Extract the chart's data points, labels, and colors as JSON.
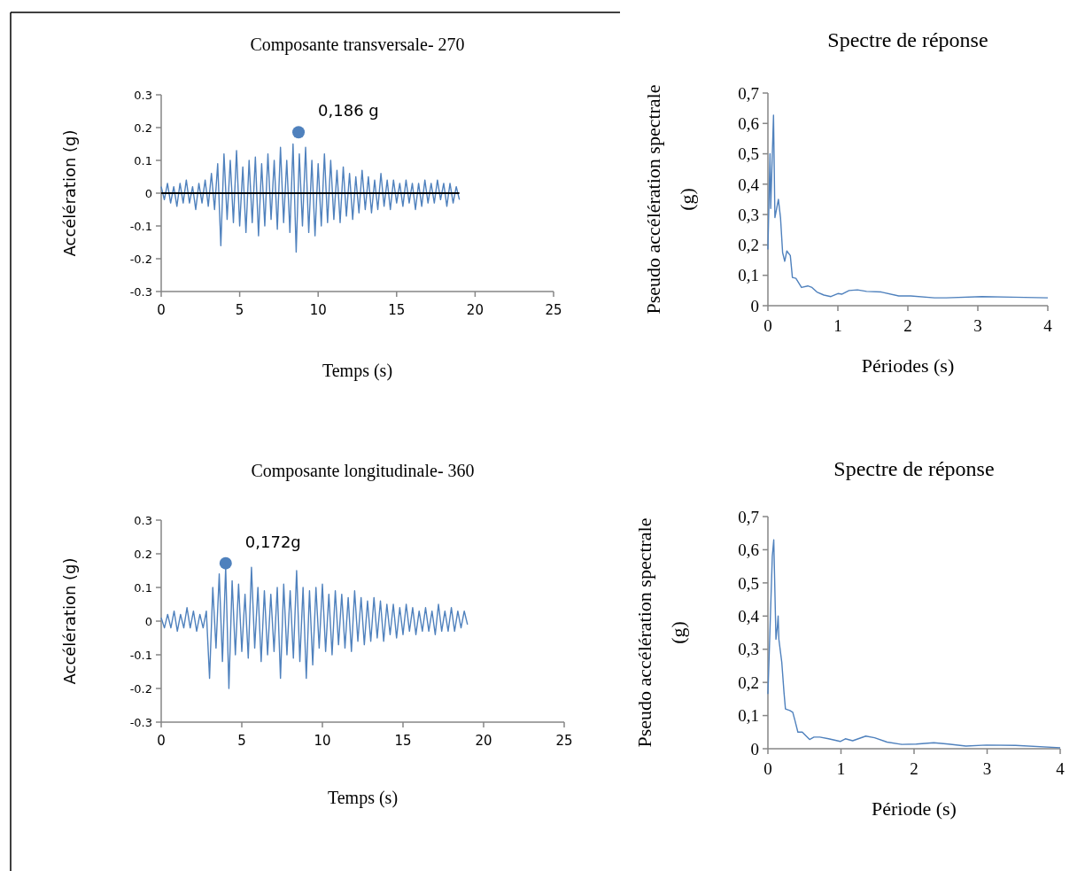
{
  "chart_data": [
    {
      "type": "line",
      "title": "Composante transversale- 270",
      "xlabel": "Temps (s)",
      "ylabel": "Accélération (g)",
      "xlim": [
        0,
        25
      ],
      "xticks": [
        0,
        5,
        10,
        15,
        20,
        25
      ],
      "ylim": [
        -0.3,
        0.3
      ],
      "yticks": [
        -0.3,
        -0.2,
        -0.1,
        0,
        0.1,
        0.2,
        0.3
      ],
      "ref_lines": [
        {
          "axis": "y",
          "value": 0,
          "color": "#000000"
        }
      ],
      "annotations": [
        {
          "text": "0,186 g",
          "x": 8.75,
          "y": 0.186
        }
      ],
      "series": [
        {
          "type": "line",
          "color": "#4f81bd",
          "x": [
            0,
            0.2,
            0.4,
            0.6,
            0.8,
            1,
            1.2,
            1.4,
            1.6,
            1.8,
            2,
            2.2,
            2.4,
            2.6,
            2.8,
            3,
            3.2,
            3.4,
            3.6,
            3.8,
            4,
            4.2,
            4.4,
            4.6,
            4.8,
            5,
            5.2,
            5.4,
            5.6,
            5.8,
            6,
            6.2,
            6.4,
            6.6,
            6.8,
            7,
            7.2,
            7.4,
            7.6,
            7.8,
            8,
            8.2,
            8.4,
            8.6,
            8.8,
            9,
            9.2,
            9.4,
            9.6,
            9.8,
            10,
            10.2,
            10.4,
            10.6,
            10.8,
            11,
            11.2,
            11.4,
            11.6,
            11.8,
            12,
            12.2,
            12.4,
            12.6,
            12.8,
            13,
            13.2,
            13.4,
            13.6,
            13.8,
            14,
            14.2,
            14.4,
            14.6,
            14.8,
            15,
            15.2,
            15.4,
            15.6,
            15.8,
            16,
            16.2,
            16.4,
            16.6,
            16.8,
            17,
            17.2,
            17.4,
            17.6,
            17.8,
            18,
            18.2,
            18.4,
            18.6,
            18.8,
            19
          ],
          "values": [
            0.02,
            -0.02,
            0.03,
            -0.03,
            0.02,
            -0.04,
            0.03,
            -0.03,
            0.04,
            -0.03,
            0.02,
            -0.05,
            0.03,
            -0.03,
            0.04,
            -0.04,
            0.06,
            -0.05,
            0.09,
            -0.16,
            0.12,
            -0.08,
            0.1,
            -0.09,
            0.13,
            -0.1,
            0.08,
            -0.12,
            0.1,
            -0.09,
            0.11,
            -0.13,
            0.09,
            -0.1,
            0.12,
            -0.08,
            0.1,
            -0.11,
            0.14,
            -0.09,
            0.1,
            -0.12,
            0.15,
            -0.18,
            0.12,
            -0.1,
            0.14,
            -0.12,
            0.1,
            -0.13,
            0.09,
            -0.1,
            0.12,
            -0.09,
            0.1,
            -0.08,
            0.07,
            -0.09,
            0.08,
            -0.07,
            0.06,
            -0.08,
            0.05,
            -0.06,
            0.07,
            -0.05,
            0.05,
            -0.06,
            0.04,
            -0.05,
            0.06,
            -0.04,
            0.04,
            -0.05,
            0.04,
            -0.03,
            0.03,
            -0.04,
            0.04,
            -0.03,
            0.03,
            -0.05,
            0.03,
            -0.04,
            0.04,
            -0.03,
            0.03,
            -0.03,
            0.04,
            -0.02,
            0.03,
            -0.04,
            0.03,
            -0.03,
            0.02,
            -0.02
          ]
        },
        {
          "type": "scatter",
          "color": "#4f81bd",
          "marker": "circle",
          "x": [
            8.75
          ],
          "values": [
            0.186
          ]
        }
      ]
    },
    {
      "type": "line",
      "title": "Spectre de réponse",
      "xlabel": "Périodes (s)",
      "ylabel": "Pseudo accélération spectrale (g)",
      "xlim": [
        0,
        4
      ],
      "xticks": [
        0,
        1,
        2,
        3,
        4
      ],
      "ylim": [
        0,
        0.7
      ],
      "yticks": [
        0,
        {
          "value": 0.1,
          "label": "0,1"
        },
        {
          "value": 0.2,
          "label": "0,2"
        },
        {
          "value": 0.3,
          "label": "0,3"
        },
        {
          "value": 0.4,
          "label": "0,4"
        },
        {
          "value": 0.5,
          "label": "0,5"
        },
        {
          "value": 0.6,
          "label": "0,6"
        },
        {
          "value": 0.7,
          "label": "0,7"
        }
      ],
      "series": [
        {
          "type": "line",
          "color": "#4f81bd",
          "x": [
            0,
            0.03,
            0.04,
            0.08,
            0.1,
            0.15,
            0.18,
            0.21,
            0.24,
            0.27,
            0.32,
            0.35,
            0.4,
            0.48,
            0.57,
            0.63,
            0.7,
            0.8,
            0.9,
            1,
            1.06,
            1.16,
            1.28,
            1.41,
            1.62,
            1.87,
            2.04,
            2.38,
            2.55,
            3.06,
            3.5,
            4
          ],
          "values": [
            0.185,
            0.5,
            0.32,
            0.627,
            0.29,
            0.35,
            0.29,
            0.175,
            0.146,
            0.18,
            0.165,
            0.093,
            0.09,
            0.06,
            0.065,
            0.06,
            0.045,
            0.035,
            0.03,
            0.04,
            0.038,
            0.05,
            0.052,
            0.047,
            0.045,
            0.032,
            0.032,
            0.026,
            0.026,
            0.03,
            0.028,
            0.026
          ]
        }
      ]
    },
    {
      "type": "line",
      "title": "Composante longitudinale- 360",
      "xlabel": "Temps (s)",
      "ylabel": "Accélération (g)",
      "xlim": [
        0,
        25
      ],
      "xticks": [
        0,
        5,
        10,
        15,
        20,
        25
      ],
      "ylim": [
        -0.3,
        0.3
      ],
      "yticks": [
        -0.3,
        -0.2,
        -0.1,
        0,
        0.1,
        0.2,
        0.3
      ],
      "annotations": [
        {
          "text": "0,172g",
          "x": 4,
          "y": 0.172
        }
      ],
      "series": [
        {
          "type": "line",
          "color": "#4f81bd",
          "x": [
            0,
            0.2,
            0.4,
            0.6,
            0.8,
            1,
            1.2,
            1.4,
            1.6,
            1.8,
            2,
            2.2,
            2.4,
            2.6,
            2.8,
            3,
            3.2,
            3.4,
            3.6,
            3.8,
            4,
            4.2,
            4.4,
            4.6,
            4.8,
            5,
            5.2,
            5.4,
            5.6,
            5.8,
            6,
            6.2,
            6.4,
            6.6,
            6.8,
            7,
            7.2,
            7.4,
            7.6,
            7.8,
            8,
            8.2,
            8.4,
            8.6,
            8.8,
            9,
            9.2,
            9.4,
            9.6,
            9.8,
            10,
            10.2,
            10.4,
            10.6,
            10.8,
            11,
            11.2,
            11.4,
            11.6,
            11.8,
            12,
            12.2,
            12.4,
            12.6,
            12.8,
            13,
            13.2,
            13.4,
            13.6,
            13.8,
            14,
            14.2,
            14.4,
            14.6,
            14.8,
            15,
            15.2,
            15.4,
            15.6,
            15.8,
            16,
            16.2,
            16.4,
            16.6,
            16.8,
            17,
            17.2,
            17.4,
            17.6,
            17.8,
            18,
            18.2,
            18.4,
            18.6,
            18.8,
            19
          ],
          "values": [
            0.01,
            -0.02,
            0.02,
            -0.02,
            0.03,
            -0.03,
            0.02,
            -0.02,
            0.04,
            -0.02,
            0.03,
            -0.03,
            0.02,
            -0.02,
            0.03,
            -0.17,
            0.1,
            -0.08,
            0.14,
            -0.12,
            0.16,
            -0.2,
            0.12,
            -0.1,
            0.11,
            -0.09,
            0.08,
            -0.11,
            0.16,
            -0.08,
            0.1,
            -0.12,
            0.09,
            -0.1,
            0.08,
            -0.09,
            0.1,
            -0.17,
            0.11,
            -0.1,
            0.09,
            -0.11,
            0.15,
            -0.12,
            0.1,
            -0.17,
            0.09,
            -0.13,
            0.1,
            -0.08,
            0.11,
            -0.09,
            0.08,
            -0.1,
            0.09,
            -0.07,
            0.08,
            -0.08,
            0.07,
            -0.09,
            0.09,
            -0.06,
            0.07,
            -0.07,
            0.06,
            -0.06,
            0.07,
            -0.05,
            0.06,
            -0.06,
            0.05,
            -0.04,
            0.05,
            -0.05,
            0.04,
            -0.04,
            0.05,
            -0.03,
            0.04,
            -0.04,
            0.03,
            -0.03,
            0.04,
            -0.03,
            0.03,
            -0.04,
            0.05,
            -0.03,
            0.03,
            -0.03,
            0.04,
            -0.03,
            0.03,
            -0.02,
            0.03,
            -0.01
          ]
        },
        {
          "type": "scatter",
          "color": "#4f81bd",
          "marker": "circle",
          "x": [
            4
          ],
          "values": [
            0.172
          ]
        }
      ]
    },
    {
      "type": "line",
      "title": "Spectre de réponse",
      "xlabel": "Période (s)",
      "ylabel": "Pseudo accélération spectrale (g)",
      "xlim": [
        0,
        4
      ],
      "xticks": [
        0,
        1,
        2,
        3,
        4
      ],
      "ylim": [
        0,
        0.7
      ],
      "yticks": [
        0,
        {
          "value": 0.1,
          "label": "0,1"
        },
        {
          "value": 0.2,
          "label": "0,2"
        },
        {
          "value": 0.3,
          "label": "0,3"
        },
        {
          "value": 0.4,
          "label": "0,4"
        },
        {
          "value": 0.5,
          "label": "0,5"
        },
        {
          "value": 0.6,
          "label": "0,6"
        },
        {
          "value": 0.7,
          "label": "0,7"
        }
      ],
      "series": [
        {
          "type": "line",
          "color": "#4f81bd",
          "x": [
            0,
            0.03,
            0.06,
            0.08,
            0.11,
            0.13,
            0.14,
            0.15,
            0.19,
            0.22,
            0.24,
            0.3,
            0.34,
            0.37,
            0.41,
            0.47,
            0.57,
            0.63,
            0.71,
            0.83,
            0.99,
            1.06,
            1.16,
            1.34,
            1.46,
            1.63,
            1.83,
            2.03,
            2.27,
            2.47,
            2.71,
            2.99,
            3.39,
            4
          ],
          "values": [
            0.165,
            0.37,
            0.58,
            0.63,
            0.33,
            0.37,
            0.4,
            0.33,
            0.26,
            0.17,
            0.12,
            0.115,
            0.11,
            0.085,
            0.05,
            0.05,
            0.028,
            0.035,
            0.035,
            0.03,
            0.022,
            0.03,
            0.024,
            0.038,
            0.033,
            0.02,
            0.013,
            0.014,
            0.018,
            0.014,
            0.008,
            0.011,
            0.01,
            0.003
          ]
        }
      ]
    }
  ]
}
